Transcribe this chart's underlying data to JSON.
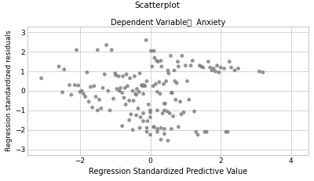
{
  "title": "Scatterplot",
  "subtitle": "Dependent Variable：  Anxiety",
  "xlabel": "Regression Standardized Predictive Value",
  "ylabel": "Regression standardized residuals",
  "xlim": [
    -3.5,
    4.5
  ],
  "ylim": [
    -3.3,
    3.3
  ],
  "xticks": [
    -2,
    0,
    2,
    4
  ],
  "yticks": [
    -3,
    -2,
    -1,
    0,
    1,
    2,
    3
  ],
  "marker_color": "#808080",
  "marker_size": 12,
  "background_color": "#ffffff",
  "scatter_x": [
    -3.1,
    -2.6,
    -2.5,
    -2.45,
    -2.3,
    -2.25,
    -2.15,
    -2.1,
    -2.05,
    -2.0,
    -1.95,
    -1.9,
    -1.85,
    -1.8,
    -1.75,
    -1.7,
    -1.65,
    -1.6,
    -1.55,
    -1.5,
    -1.5,
    -1.45,
    -1.4,
    -1.35,
    -1.3,
    -1.25,
    -1.2,
    -1.15,
    -1.1,
    -1.05,
    -1.0,
    -0.98,
    -0.95,
    -0.9,
    -0.88,
    -0.85,
    -0.8,
    -0.78,
    -0.75,
    -0.72,
    -0.7,
    -0.68,
    -0.65,
    -0.6,
    -0.58,
    -0.55,
    -0.5,
    -0.48,
    -0.45,
    -0.42,
    -0.4,
    -0.38,
    -0.35,
    -0.32,
    -0.3,
    -0.28,
    -0.25,
    -0.22,
    -0.2,
    -0.18,
    -0.15,
    -0.12,
    -0.1,
    -0.08,
    -0.05,
    0.0,
    0.02,
    0.05,
    0.08,
    0.1,
    0.12,
    0.15,
    0.18,
    0.2,
    0.22,
    0.25,
    0.28,
    0.3,
    0.32,
    0.35,
    0.38,
    0.4,
    0.42,
    0.45,
    0.48,
    0.5,
    0.52,
    0.55,
    0.58,
    0.6,
    0.62,
    0.65,
    0.68,
    0.7,
    0.72,
    0.75,
    0.78,
    0.8,
    0.85,
    0.88,
    0.9,
    0.95,
    1.0,
    1.05,
    1.1,
    1.15,
    1.2,
    1.25,
    1.3,
    1.35,
    1.4,
    1.45,
    1.5,
    1.55,
    1.6,
    1.65,
    1.7,
    1.75,
    1.8,
    1.85,
    1.9,
    1.95,
    2.0,
    2.1,
    2.15,
    2.2,
    2.25,
    2.3,
    2.4,
    2.5,
    3.1,
    3.2,
    -0.8,
    -0.6,
    -0.4,
    -0.2,
    0.0,
    0.2,
    0.4,
    -0.5,
    -0.3,
    -0.1,
    0.1,
    0.3,
    0.5,
    0.0,
    0.2,
    0.4,
    0.6,
    0.8,
    -0.2,
    0.0,
    0.2,
    0.4,
    -0.1,
    0.1,
    0.3
  ],
  "scatter_y": [
    0.65,
    1.25,
    -0.07,
    1.1,
    0.3,
    -0.2,
    0.3,
    2.1,
    0.28,
    -0.05,
    0.0,
    -0.15,
    -0.3,
    0.95,
    -0.55,
    0.2,
    -0.85,
    0.25,
    -0.3,
    -1.0,
    2.1,
    -0.45,
    -0.9,
    0.15,
    0.85,
    2.35,
    0.0,
    -1.0,
    2.1,
    -0.4,
    0.9,
    0.8,
    0.1,
    0.75,
    0.0,
    0.15,
    -0.1,
    0.75,
    -0.35,
    0.15,
    -0.7,
    0.85,
    0.25,
    -0.5,
    0.65,
    -1.2,
    0.0,
    -0.5,
    0.75,
    -0.15,
    -0.2,
    0.1,
    -0.9,
    -0.05,
    0.9,
    -1.35,
    0.3,
    0.25,
    -0.15,
    0.3,
    0.25,
    2.6,
    0.5,
    -1.55,
    -0.7,
    -1.1,
    2.05,
    1.25,
    0.25,
    2.05,
    1.7,
    0.35,
    1.55,
    -0.05,
    1.5,
    0.45,
    -0.15,
    1.55,
    1.25,
    -1.15,
    0.35,
    -0.65,
    -0.65,
    0.5,
    -1.05,
    1.05,
    0.9,
    -1.15,
    1.8,
    -0.1,
    -0.1,
    -1.3,
    1.05,
    0.5,
    -0.45,
    0.4,
    1.5,
    1.25,
    -0.55,
    -1.2,
    1.8,
    -1.1,
    1.3,
    0.5,
    -0.45,
    1.3,
    1.55,
    -1.05,
    -2.1,
    -2.25,
    1.3,
    1.25,
    1.2,
    -2.1,
    -2.1,
    1.5,
    1.2,
    1.05,
    1.15,
    1.0,
    1.3,
    0.95,
    1.2,
    1.15,
    -2.1,
    -2.1,
    1.5,
    1.2,
    1.05,
    1.15,
    1.0,
    0.95,
    -1.8,
    -1.5,
    -1.25,
    -1.55,
    -1.0,
    -1.0,
    -1.0,
    -2.0,
    -1.9,
    -2.1,
    -1.85,
    -2.5,
    -2.55,
    -2.25,
    -2.1,
    -2.2,
    -1.95,
    -1.85,
    -1.15,
    -1.35,
    -1.95,
    -1.95,
    -1.9,
    -1.85,
    -1.9
  ]
}
